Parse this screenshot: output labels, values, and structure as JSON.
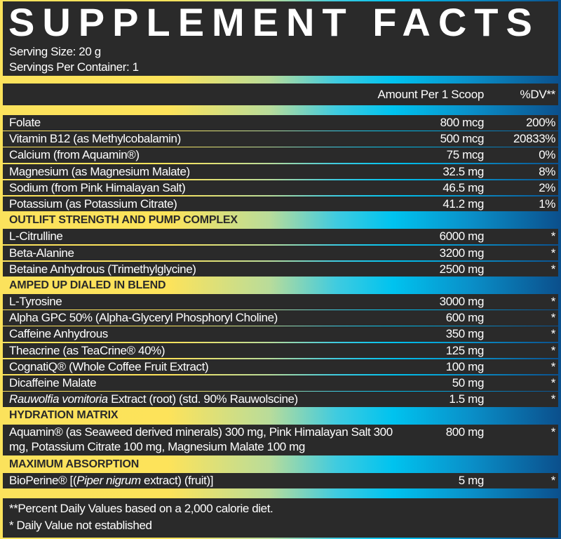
{
  "title": "SUPPLEMENT FACTS",
  "serving_size": "Serving Size: 20 g",
  "servings_per_container": "Servings Per Container: 1",
  "header": {
    "amount": "Amount Per 1 Scoop",
    "dv": "%DV**"
  },
  "colors": {
    "panel": "#2a2a2a",
    "gradient": [
      "#fde35a",
      "#b9dc9a",
      "#00c3ef",
      "#0b4f8c"
    ]
  },
  "items": [
    {
      "type": "row",
      "name": [
        {
          "text": "Folate"
        }
      ],
      "amount": "800 mcg",
      "dv": "200%"
    },
    {
      "type": "row",
      "name": [
        {
          "text": "Vitamin B12 (as Methylcobalamin)"
        }
      ],
      "amount": "500 mcg",
      "dv": "20833%"
    },
    {
      "type": "row",
      "name": [
        {
          "text": "Calcium (from Aquamin®)"
        }
      ],
      "amount": "75 mcg",
      "dv": "0%"
    },
    {
      "type": "row",
      "name": [
        {
          "text": "Magnesium (as Magnesium Malate)"
        }
      ],
      "amount": "32.5 mg",
      "dv": "8%"
    },
    {
      "type": "row",
      "name": [
        {
          "text": "Sodium (from Pink Himalayan Salt)"
        }
      ],
      "amount": "46.5 mg",
      "dv": "2%"
    },
    {
      "type": "row",
      "name": [
        {
          "text": "Potassium (as Potassium Citrate)"
        }
      ],
      "amount": "41.2 mg",
      "dv": "1%"
    },
    {
      "type": "section",
      "label": "OUTLIFT STRENGTH AND PUMP COMPLEX"
    },
    {
      "type": "row",
      "name": [
        {
          "text": "L-Citrulline"
        }
      ],
      "amount": "6000 mg",
      "dv": "*"
    },
    {
      "type": "row",
      "name": [
        {
          "text": "Beta-Alanine"
        }
      ],
      "amount": "3200 mg",
      "dv": "*"
    },
    {
      "type": "row",
      "name": [
        {
          "text": "Betaine Anhydrous (Trimethylglycine)"
        }
      ],
      "amount": "2500 mg",
      "dv": "*"
    },
    {
      "type": "section",
      "label": "AMPED UP DIALED IN BLEND"
    },
    {
      "type": "row",
      "name": [
        {
          "text": "L-Tyrosine"
        }
      ],
      "amount": "3000 mg",
      "dv": "*"
    },
    {
      "type": "row",
      "name": [
        {
          "text": "Alpha GPC 50% (Alpha-Glyceryl Phosphoryl Choline)"
        }
      ],
      "amount": "600 mg",
      "dv": "*"
    },
    {
      "type": "row",
      "name": [
        {
          "text": "Caffeine Anhydrous"
        }
      ],
      "amount": "350 mg",
      "dv": "*"
    },
    {
      "type": "row",
      "name": [
        {
          "text": "Theacrine (as TeaCrine® 40%)"
        }
      ],
      "amount": "125 mg",
      "dv": "*"
    },
    {
      "type": "row",
      "name": [
        {
          "text": "CognatiQ® (Whole Coffee Fruit Extract)"
        }
      ],
      "amount": "100 mg",
      "dv": "*"
    },
    {
      "type": "row",
      "name": [
        {
          "text": "Dicaffeine Malate"
        }
      ],
      "amount": "50 mg",
      "dv": "*"
    },
    {
      "type": "row",
      "name": [
        {
          "text": "Rauwolfia vomitoria",
          "italic": true
        },
        {
          "text": " Extract (root) (std. 90% Rauwolscine)"
        }
      ],
      "amount": "1.5 mg",
      "dv": "*"
    },
    {
      "type": "section",
      "label": "HYDRATION MATRIX"
    },
    {
      "type": "row",
      "two_line": true,
      "name": [
        {
          "text": "Aquamin® (as Seaweed derived minerals) 300 mg, Pink Himalayan Salt 300 mg, Potassium Citrate 100 mg, Magnesium Malate 100 mg"
        }
      ],
      "amount": "800 mg",
      "dv": "*"
    },
    {
      "type": "section",
      "label": "MAXIMUM ABSORPTION"
    },
    {
      "type": "row",
      "name": [
        {
          "text": "BioPerine® [("
        },
        {
          "text": "Piper nigrum",
          "italic": true
        },
        {
          "text": " extract) (fruit)]"
        }
      ],
      "amount": "5 mg",
      "dv": "*"
    }
  ],
  "footnotes": [
    "**Percent Daily Values based on a 2,000 calorie diet.",
    "* Daily Value not established"
  ]
}
